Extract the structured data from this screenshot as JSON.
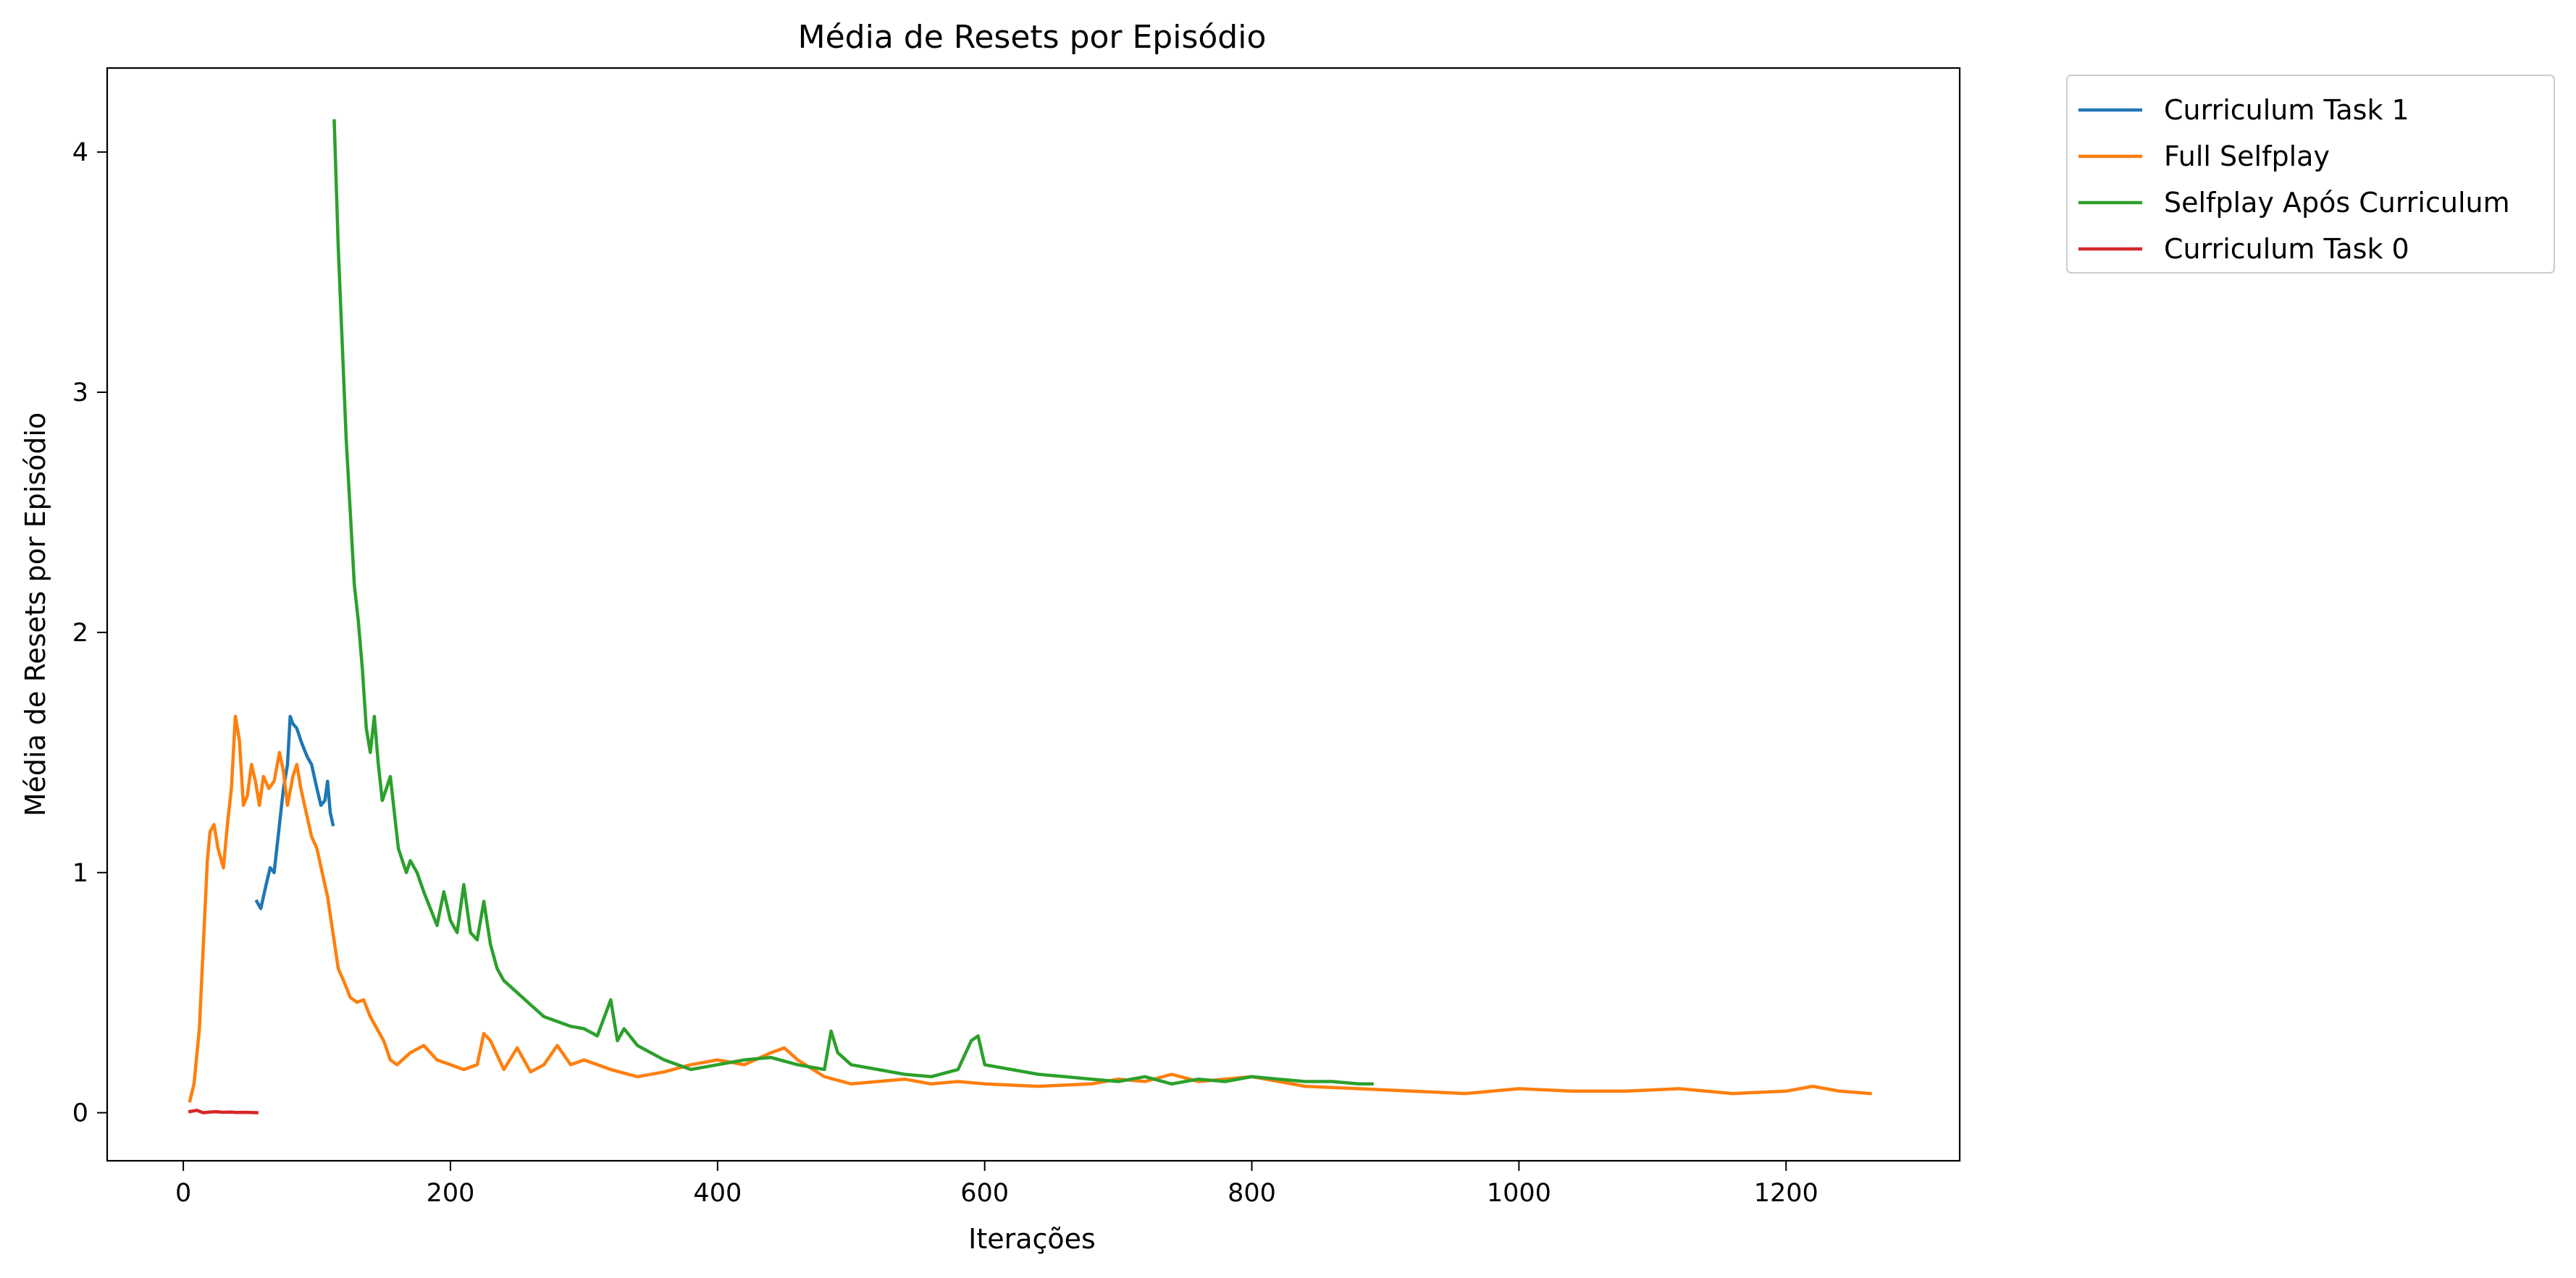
{
  "chart_data": {
    "type": "line",
    "title": "Média de Resets por Episódio",
    "xlabel": "Iterações",
    "ylabel": "Média de Resets por Episódio",
    "xlim": [
      -57,
      1330
    ],
    "ylim": [
      -0.2,
      4.35
    ],
    "xticks": [
      0,
      200,
      400,
      600,
      800,
      1000,
      1200
    ],
    "yticks": [
      0,
      1,
      2,
      3,
      4
    ],
    "grid": false,
    "legend_position": "outside-top-right",
    "series": [
      {
        "name": "Curriculum Task 1",
        "color": "#1f77b4",
        "x": [
          55,
          58,
          60,
          62,
          65,
          68,
          70,
          72,
          75,
          78,
          80,
          82,
          85,
          88,
          90,
          93,
          96,
          100,
          103,
          106,
          108,
          110,
          112
        ],
        "y": [
          0.88,
          0.85,
          0.9,
          0.95,
          1.02,
          1.0,
          1.1,
          1.2,
          1.35,
          1.45,
          1.65,
          1.62,
          1.6,
          1.55,
          1.52,
          1.48,
          1.45,
          1.35,
          1.28,
          1.3,
          1.38,
          1.25,
          1.2
        ]
      },
      {
        "name": "Full Selfplay",
        "color": "#ff7f0e",
        "x": [
          5,
          8,
          12,
          15,
          18,
          20,
          23,
          26,
          30,
          33,
          36,
          39,
          42,
          45,
          48,
          51,
          54,
          57,
          60,
          64,
          68,
          72,
          75,
          78,
          82,
          85,
          88,
          92,
          96,
          100,
          104,
          108,
          112,
          116,
          120,
          125,
          130,
          135,
          140,
          145,
          150,
          155,
          160,
          170,
          180,
          190,
          200,
          210,
          220,
          225,
          230,
          240,
          250,
          260,
          270,
          280,
          290,
          300,
          320,
          340,
          360,
          380,
          400,
          420,
          440,
          450,
          460,
          480,
          500,
          520,
          540,
          560,
          580,
          600,
          640,
          680,
          700,
          720,
          740,
          760,
          780,
          800,
          840,
          880,
          920,
          960,
          1000,
          1040,
          1080,
          1120,
          1160,
          1200,
          1220,
          1240,
          1263
        ],
        "y": [
          0.05,
          0.12,
          0.35,
          0.7,
          1.05,
          1.17,
          1.2,
          1.1,
          1.02,
          1.2,
          1.35,
          1.65,
          1.55,
          1.28,
          1.32,
          1.45,
          1.38,
          1.28,
          1.4,
          1.35,
          1.38,
          1.5,
          1.42,
          1.28,
          1.4,
          1.45,
          1.35,
          1.25,
          1.15,
          1.1,
          1.0,
          0.9,
          0.75,
          0.6,
          0.55,
          0.48,
          0.46,
          0.47,
          0.4,
          0.35,
          0.3,
          0.22,
          0.2,
          0.25,
          0.28,
          0.22,
          0.2,
          0.18,
          0.2,
          0.33,
          0.3,
          0.18,
          0.27,
          0.17,
          0.2,
          0.28,
          0.2,
          0.22,
          0.18,
          0.15,
          0.17,
          0.2,
          0.22,
          0.2,
          0.25,
          0.27,
          0.22,
          0.15,
          0.12,
          0.13,
          0.14,
          0.12,
          0.13,
          0.12,
          0.11,
          0.12,
          0.14,
          0.13,
          0.16,
          0.13,
          0.14,
          0.15,
          0.11,
          0.1,
          0.09,
          0.08,
          0.1,
          0.09,
          0.09,
          0.1,
          0.08,
          0.09,
          0.11,
          0.09,
          0.08
        ]
      },
      {
        "name": "Selfplay Após Curriculum",
        "color": "#2ca02c",
        "x": [
          113,
          116,
          119,
          122,
          125,
          128,
          131,
          134,
          137,
          140,
          143,
          146,
          149,
          152,
          155,
          158,
          161,
          164,
          167,
          170,
          175,
          180,
          185,
          190,
          195,
          200,
          205,
          210,
          215,
          220,
          225,
          230,
          235,
          240,
          250,
          260,
          270,
          280,
          290,
          300,
          310,
          320,
          325,
          330,
          340,
          350,
          360,
          370,
          380,
          400,
          420,
          440,
          460,
          480,
          485,
          490,
          500,
          520,
          540,
          560,
          580,
          590,
          595,
          600,
          620,
          640,
          660,
          680,
          700,
          720,
          740,
          760,
          780,
          800,
          820,
          840,
          860,
          880,
          890
        ],
        "y": [
          4.13,
          3.6,
          3.2,
          2.8,
          2.5,
          2.2,
          2.05,
          1.85,
          1.6,
          1.5,
          1.65,
          1.45,
          1.3,
          1.35,
          1.4,
          1.25,
          1.1,
          1.05,
          1.0,
          1.05,
          1.0,
          0.92,
          0.85,
          0.78,
          0.92,
          0.8,
          0.75,
          0.95,
          0.75,
          0.72,
          0.88,
          0.7,
          0.6,
          0.55,
          0.5,
          0.45,
          0.4,
          0.38,
          0.36,
          0.35,
          0.32,
          0.47,
          0.3,
          0.35,
          0.28,
          0.25,
          0.22,
          0.2,
          0.18,
          0.2,
          0.22,
          0.23,
          0.2,
          0.18,
          0.34,
          0.25,
          0.2,
          0.18,
          0.16,
          0.15,
          0.18,
          0.3,
          0.32,
          0.2,
          0.18,
          0.16,
          0.15,
          0.14,
          0.13,
          0.15,
          0.12,
          0.14,
          0.13,
          0.15,
          0.14,
          0.13,
          0.13,
          0.12,
          0.12
        ]
      },
      {
        "name": "Curriculum Task 0",
        "color": "#d62728",
        "x": [
          5,
          10,
          15,
          20,
          25,
          30,
          35,
          40,
          45,
          50,
          55
        ],
        "y": [
          0.005,
          0.01,
          0.0,
          0.003,
          0.004,
          0.002,
          0.003,
          0.001,
          0.002,
          0.001,
          0.0
        ]
      }
    ]
  }
}
